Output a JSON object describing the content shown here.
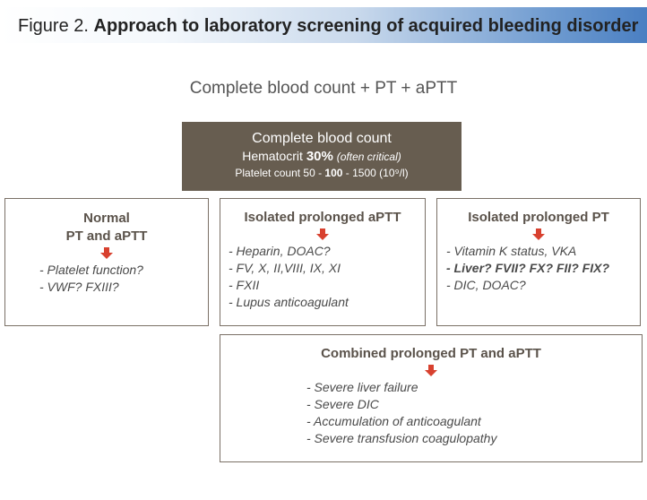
{
  "banner": {
    "figure_label": "Figure 2.",
    "caption": "Approach to laboratory screening of acquired bleeding disorder"
  },
  "top_title": "Complete blood count + PT + aPTT",
  "cbc_box": {
    "title": "Complete blood count",
    "hematocrit_label": "Hematocrit",
    "hematocrit_value": "30%",
    "hematocrit_note": "(often critical)",
    "platelet_label": "Platelet count 50 - ",
    "platelet_mid": "100",
    "platelet_rest": " - 1500 (10⁹/l)"
  },
  "boxes": {
    "normal": {
      "title_line1": "Normal",
      "title_line2": "PT and aPTT",
      "items": [
        "- Platelet function?",
        "- VWF? FXIII?"
      ]
    },
    "aptt": {
      "title": "Isolated prolonged aPTT",
      "items": [
        "- Heparin, DOAC?",
        "- FV, X, II,VIII, IX, XI",
        "- FXII",
        "- Lupus anticoagulant"
      ]
    },
    "pt": {
      "title": "Isolated prolonged PT",
      "items": [
        "- Vitamin K status, VKA",
        "- Liver? FVII? FX? FII? FIX?",
        "- DIC, DOAC?"
      ]
    },
    "combined": {
      "title": "Combined prolonged PT and aPTT",
      "items": [
        "- Severe liver failure",
        "- Severe DIC",
        "- Accumulation of anticoagulant",
        "- Severe transfusion coagulopathy"
      ]
    }
  },
  "colors": {
    "cbc_background": "#675d50",
    "arrow": "#d8412f",
    "banner_end": "#4a7fc2"
  }
}
